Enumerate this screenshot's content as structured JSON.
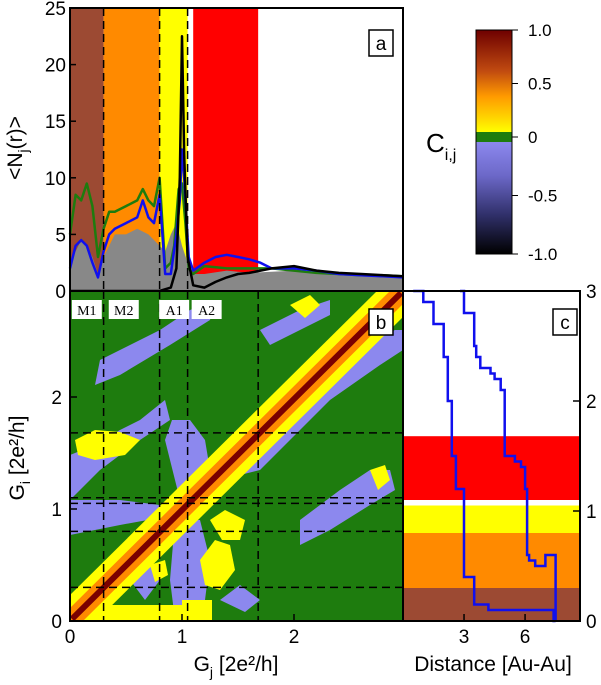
{
  "colors": {
    "brown": "#9c4a33",
    "orange": "#ff8a00",
    "yellow": "#ffff00",
    "red": "#ff0000",
    "green": "#1e7c0e",
    "lavender": "#8c88ee",
    "gray": "#888888",
    "blue": "#1010ee",
    "black": "#000000",
    "darkred": "#7a0000"
  },
  "chart_data": [
    {
      "id": "a",
      "type": "area",
      "panel_label": "a",
      "ylabel_main": "<N",
      "ylabel_sub": "j",
      "ylabel_end": "(r)>",
      "ylim": [
        0,
        25
      ],
      "yticks": [
        "0",
        "5",
        "10",
        "15",
        "20",
        "25"
      ],
      "yvalues": [
        0,
        5,
        10,
        15,
        20,
        25
      ],
      "xlim": [
        0,
        3.0
      ],
      "regions": [
        {
          "from": 0.0,
          "to": 0.3,
          "color": "brown"
        },
        {
          "from": 0.3,
          "to": 0.8,
          "color": "orange"
        },
        {
          "from": 0.8,
          "to": 1.05,
          "color": "yellow"
        },
        {
          "from": 1.1,
          "to": 1.68,
          "color": "red"
        }
      ],
      "series": [
        {
          "color": "gray",
          "fill": true,
          "x": [
            0.0,
            0.05,
            0.1,
            0.15,
            0.2,
            0.25,
            0.3,
            0.4,
            0.5,
            0.6,
            0.7,
            0.8,
            0.85,
            0.9,
            0.95,
            1.0,
            1.05,
            1.1,
            1.2,
            1.4,
            1.6,
            1.8,
            2.0,
            2.2,
            2.4,
            2.6,
            2.8,
            3.0
          ],
          "y": [
            2.5,
            3.5,
            4.5,
            4.0,
            3.0,
            1.5,
            3.0,
            5.0,
            5.0,
            5.5,
            5.0,
            4.0,
            3.5,
            5.0,
            6.0,
            4.0,
            2.5,
            1.5,
            1.5,
            1.8,
            1.6,
            1.7,
            1.8,
            1.7,
            1.5,
            1.4,
            1.3,
            1.3
          ]
        },
        {
          "color": "green",
          "x": [
            0.0,
            0.05,
            0.1,
            0.15,
            0.2,
            0.25,
            0.3,
            0.35,
            0.4,
            0.5,
            0.6,
            0.65,
            0.7,
            0.75,
            0.8,
            0.85,
            0.9,
            0.93,
            0.97,
            1.0,
            1.03,
            1.06,
            1.1,
            1.2,
            1.4,
            1.6,
            1.8,
            2.0,
            2.2,
            2.4,
            2.6,
            2.8,
            3.0
          ],
          "y": [
            5.0,
            8.5,
            8.0,
            9.5,
            7.5,
            3.0,
            5.5,
            7.0,
            7.0,
            7.5,
            8.0,
            9.0,
            8.0,
            7.5,
            10.0,
            2.0,
            2.5,
            4.0,
            9.0,
            9.5,
            6.0,
            2.0,
            1.5,
            2.2,
            2.0,
            2.0,
            2.0,
            1.8,
            1.6,
            1.5,
            1.4,
            1.4,
            1.3
          ]
        },
        {
          "color": "blue",
          "x": [
            0.0,
            0.05,
            0.1,
            0.15,
            0.2,
            0.25,
            0.3,
            0.35,
            0.4,
            0.5,
            0.6,
            0.65,
            0.7,
            0.75,
            0.8,
            0.85,
            0.9,
            0.95,
            0.98,
            1.0,
            1.02,
            1.06,
            1.1,
            1.2,
            1.3,
            1.4,
            1.5,
            1.6,
            1.7,
            1.8,
            2.0,
            2.2,
            2.4,
            2.6,
            2.8,
            3.0
          ],
          "y": [
            2.0,
            4.0,
            4.5,
            4.0,
            2.5,
            1.2,
            3.5,
            5.0,
            5.5,
            6.0,
            6.5,
            8.0,
            6.5,
            6.0,
            8.5,
            1.5,
            1.5,
            5.0,
            8.0,
            12.5,
            10.0,
            3.0,
            1.8,
            2.5,
            3.0,
            3.2,
            3.0,
            2.8,
            2.5,
            2.0,
            2.0,
            1.8,
            1.5,
            1.4,
            1.3,
            1.2
          ]
        },
        {
          "color": "black",
          "x": [
            0.0,
            0.4,
            0.8,
            0.9,
            0.95,
            0.98,
            1.0,
            1.02,
            1.05,
            1.1,
            1.2,
            1.3,
            1.4,
            1.5,
            1.6,
            1.8,
            2.0,
            2.2,
            2.4,
            2.6,
            2.8,
            3.0
          ],
          "y": [
            0.0,
            0.0,
            0.0,
            0.3,
            2.0,
            10.0,
            22.5,
            12.0,
            3.0,
            0.5,
            0.3,
            0.8,
            1.2,
            1.5,
            1.6,
            2.0,
            2.2,
            1.8,
            1.6,
            1.5,
            1.4,
            1.3
          ]
        }
      ]
    },
    {
      "id": "b",
      "type": "heatmap",
      "panel_label": "b",
      "xlabel_main": "G",
      "xlabel_sub": "j",
      "xlabel_end": " [2e²/h]",
      "ylabel_main": "G",
      "ylabel_sub": "i",
      "ylabel_end": " [2e²/h]",
      "xlim": [
        0,
        3.0
      ],
      "ylim": [
        0,
        3.0
      ],
      "xticks": [
        "0",
        "1",
        "2"
      ],
      "yticks": [
        "0",
        "1",
        "2"
      ],
      "tickvalues": [
        0,
        1,
        2
      ],
      "region_labels": [
        "M1",
        "M2",
        "A1",
        "A2"
      ],
      "dashed_lines": [
        0.3,
        0.8,
        1.05,
        1.1,
        1.68
      ],
      "background": "green"
    },
    {
      "id": "c",
      "type": "line",
      "panel_label": "c",
      "xlabel": "Distance [Au-Au]",
      "xticks": [
        "3",
        "6"
      ],
      "xtickvalues": [
        3,
        6
      ],
      "xlim": [
        0,
        8.7
      ],
      "ylim": [
        0,
        3.0
      ],
      "yticks": [
        "0",
        "1",
        "2",
        "3"
      ],
      "yvalues": [
        0,
        1,
        2,
        3
      ],
      "bands": [
        {
          "from": 0.0,
          "to": 0.3,
          "color": "brown"
        },
        {
          "from": 0.3,
          "to": 0.8,
          "color": "orange"
        },
        {
          "from": 0.8,
          "to": 1.05,
          "color": "yellow"
        },
        {
          "from": 1.1,
          "to": 1.68,
          "color": "red"
        }
      ],
      "series": [
        {
          "color": "blue",
          "x": [
            0.5,
            1.0,
            1.5,
            2.0,
            2.2,
            2.4,
            2.6,
            3.0,
            3.5,
            4.0,
            4.2,
            4.5,
            5.0,
            5.5,
            6.0,
            6.2,
            6.5,
            7.0,
            7.4,
            7.5
          ],
          "y": [
            3.0,
            2.9,
            2.7,
            2.4,
            2.0,
            1.5,
            1.2,
            0.4,
            0.15,
            0.15,
            0.1,
            0.1,
            0.1,
            0.1,
            0.1,
            0.1,
            0.1,
            0.1,
            0.0,
            0.0
          ]
        },
        {
          "color": "blue",
          "x": [
            2.8,
            3.0,
            3.2,
            3.5,
            3.6,
            3.8,
            4.0,
            4.3,
            4.5,
            4.8,
            5.0,
            5.5,
            5.8,
            6.0,
            6.1,
            6.2,
            6.5,
            7.0,
            7.3,
            7.5
          ],
          "y": [
            3.0,
            2.8,
            2.8,
            2.5,
            2.4,
            2.3,
            2.3,
            2.25,
            2.2,
            2.1,
            1.5,
            1.45,
            1.4,
            1.2,
            0.6,
            0.55,
            0.5,
            0.6,
            0.6,
            0.0
          ]
        }
      ]
    },
    {
      "id": "colorbar",
      "type": "colorbar",
      "title_main": "C",
      "title_sub": "i,j",
      "ticks": [
        "1.0",
        "0.5",
        "0",
        "-0.5",
        "-1.0"
      ],
      "tickvalues": [
        1.0,
        0.5,
        0.0,
        -0.5,
        -1.0
      ]
    }
  ]
}
